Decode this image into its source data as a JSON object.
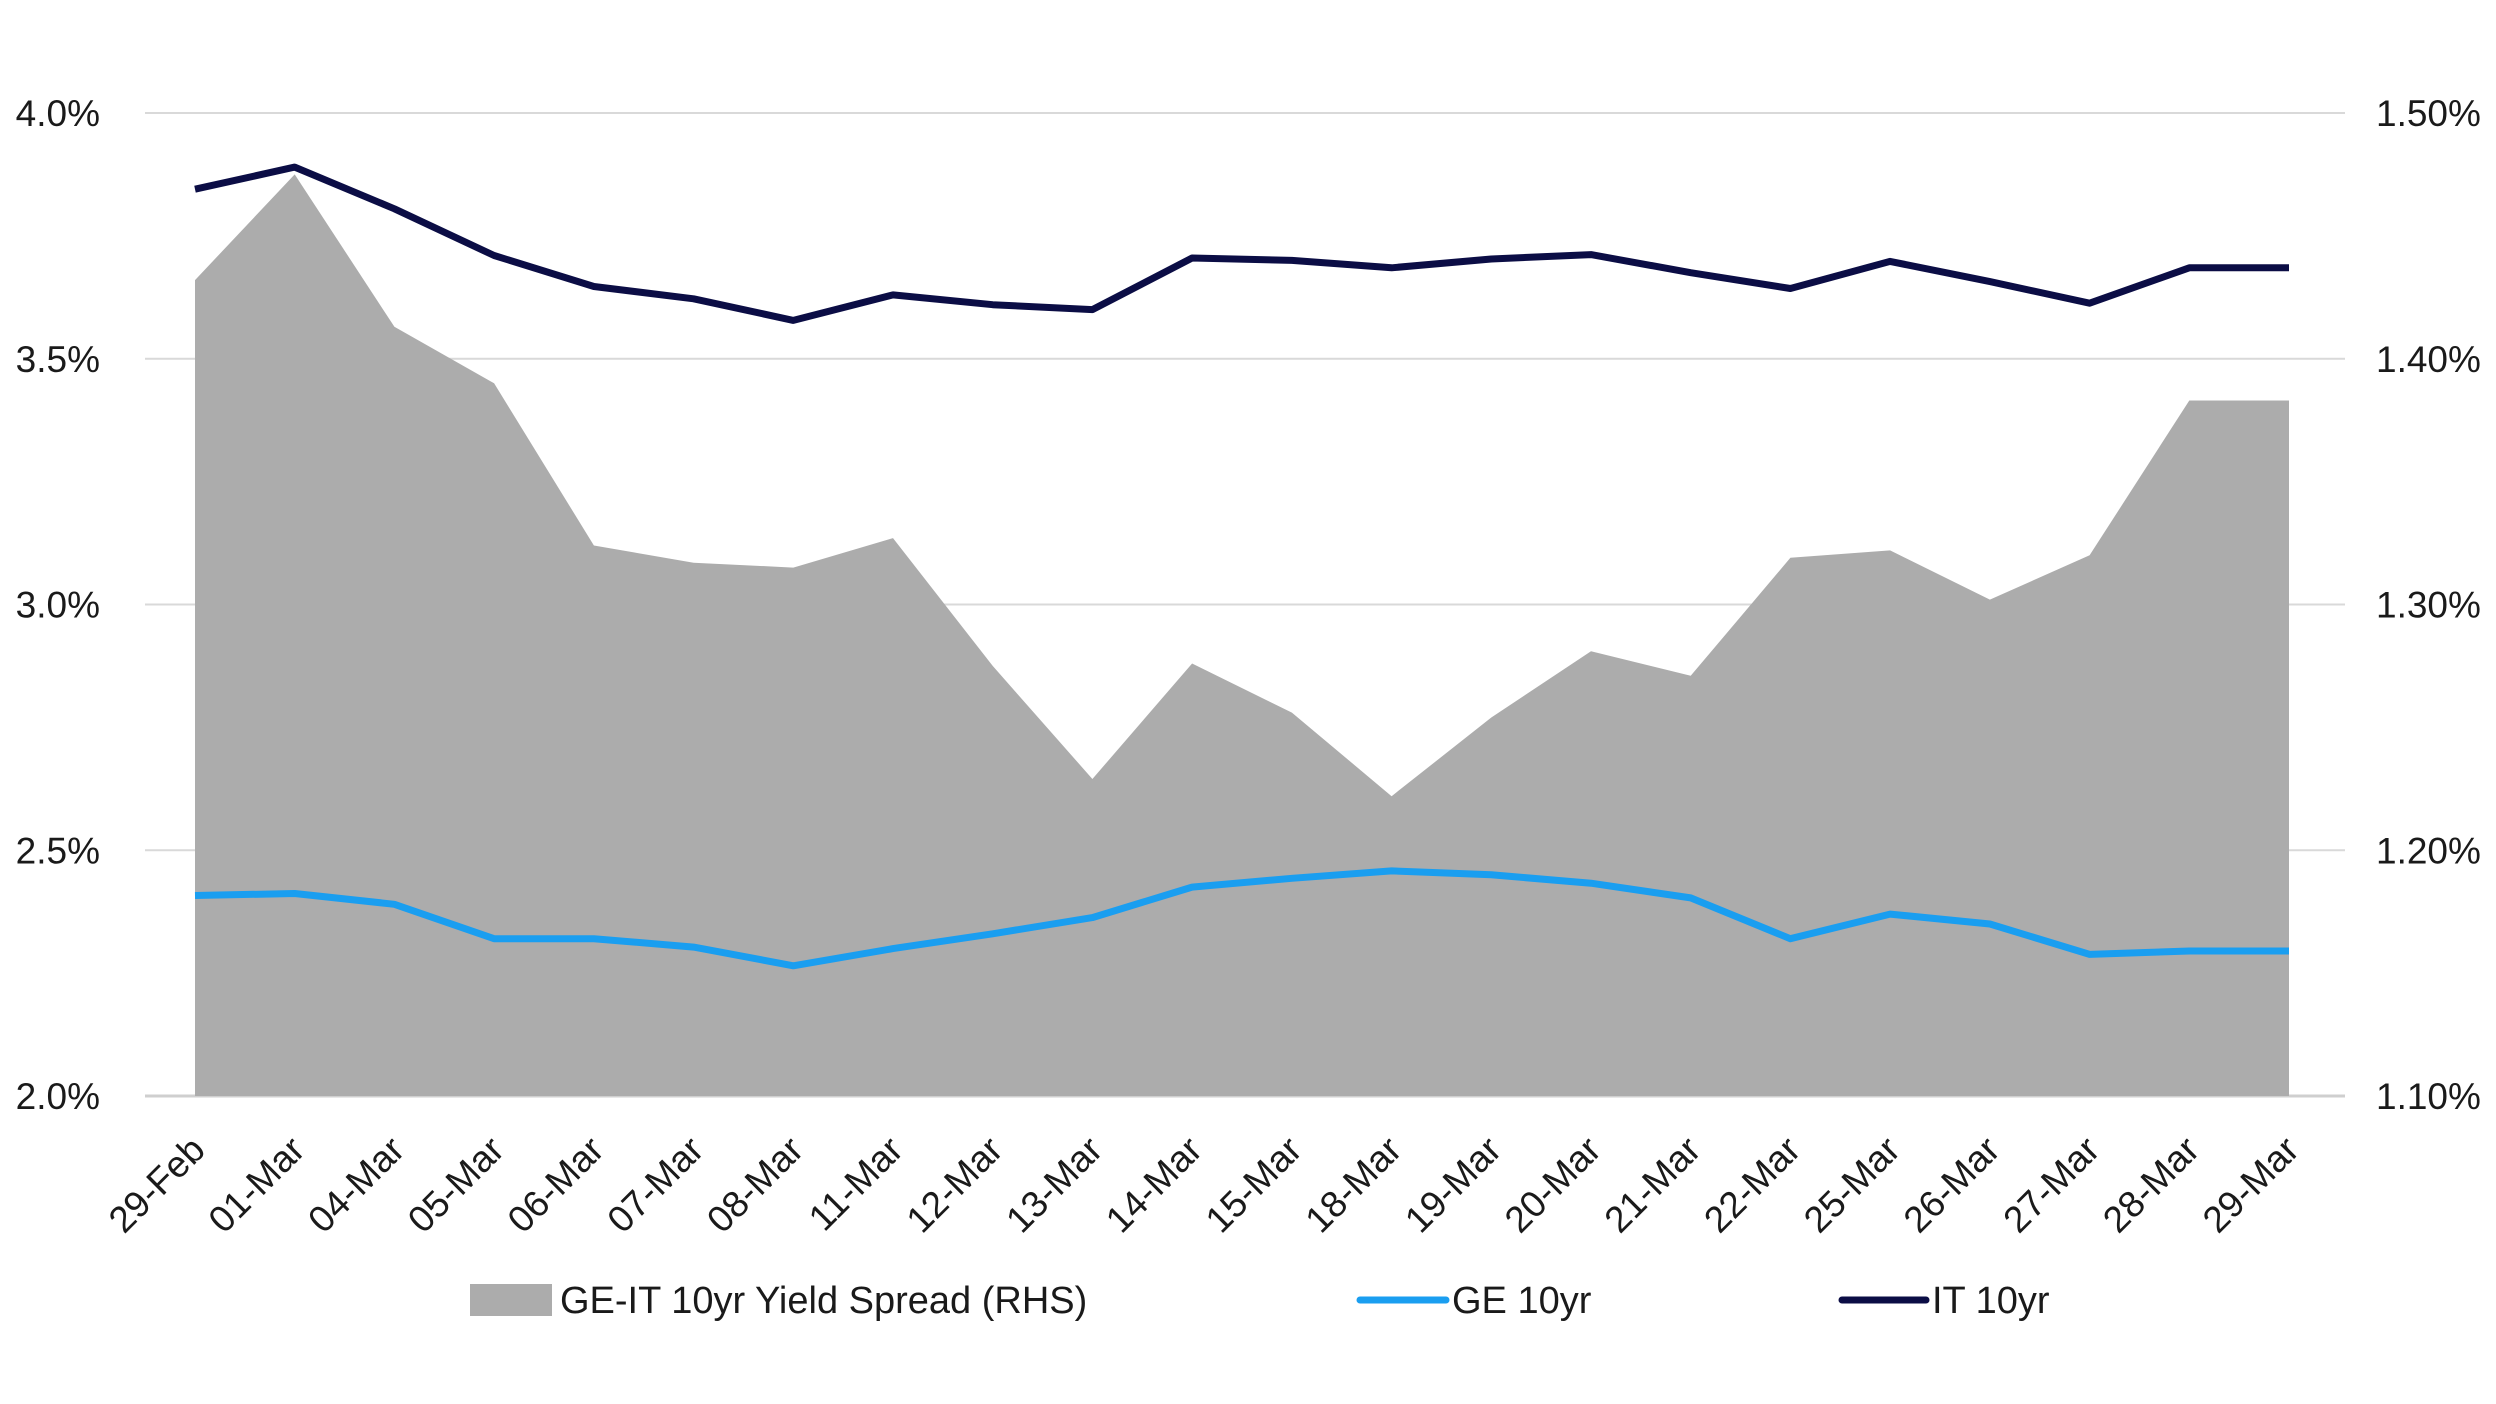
{
  "chart_data": {
    "type": "line",
    "categories": [
      "29-Feb",
      "01-Mar",
      "04-Mar",
      "05-Mar",
      "06-Mar",
      "07-Mar",
      "08-Mar",
      "11-Mar",
      "12-Mar",
      "13-Mar",
      "14-Mar",
      "15-Mar",
      "18-Mar",
      "19-Mar",
      "20-Mar",
      "21-Mar",
      "22-Mar",
      "25-Mar",
      "26-Mar",
      "27-Mar",
      "28-Mar",
      "29-Mar"
    ],
    "left_axis": {
      "ylim": [
        2.0,
        4.0
      ],
      "ticks": [
        2.0,
        2.5,
        3.0,
        3.5,
        4.0
      ],
      "tick_labels": [
        "2.0%",
        "2.5%",
        "3.0%",
        "3.5%",
        "4.0%"
      ]
    },
    "right_axis": {
      "ylim": [
        1.1,
        1.5
      ],
      "ticks": [
        1.1,
        1.2,
        1.3,
        1.4,
        1.5
      ],
      "tick_labels": [
        "1.10%",
        "1.20%",
        "1.30%",
        "1.40%",
        "1.50%"
      ]
    },
    "grid": "horizontal",
    "legend_position": "bottom",
    "series": [
      {
        "name": "GE-IT 10yr Yield Spread (RHS)",
        "type": "area",
        "axis": "right",
        "color": "#acacac",
        "values": [
          1.432,
          1.475,
          1.413,
          1.39,
          1.324,
          1.317,
          1.315,
          1.327,
          1.275,
          1.229,
          1.276,
          1.256,
          1.222,
          1.254,
          1.281,
          1.271,
          1.319,
          1.322,
          1.302,
          1.32,
          1.383,
          1.383
        ]
      },
      {
        "name": "GE 10yr",
        "type": "line",
        "axis": "left",
        "color": "#1a9ef0",
        "values": [
          2.408,
          2.412,
          2.39,
          2.32,
          2.32,
          2.303,
          2.265,
          2.3,
          2.33,
          2.363,
          2.425,
          2.443,
          2.458,
          2.45,
          2.433,
          2.403,
          2.32,
          2.37,
          2.35,
          2.288,
          2.295,
          2.295
        ]
      },
      {
        "name": "IT 10yr",
        "type": "line",
        "axis": "left",
        "color": "#0b0d45",
        "values": [
          3.845,
          3.89,
          3.805,
          3.71,
          3.647,
          3.622,
          3.578,
          3.63,
          3.61,
          3.6,
          3.705,
          3.7,
          3.685,
          3.703,
          3.712,
          3.675,
          3.643,
          3.698,
          3.657,
          3.613,
          3.685,
          3.685
        ]
      }
    ],
    "grid_color": "#d9d9d9",
    "axis_color": "#cfcfcf"
  }
}
